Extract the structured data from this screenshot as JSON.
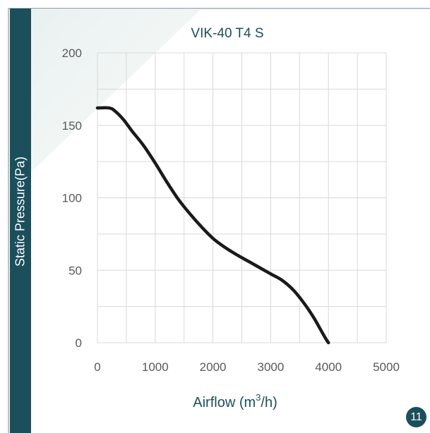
{
  "page_number": "11",
  "chart_data": {
    "type": "line",
    "title": "VIK-40 T4 S",
    "xlabel": "Airflow (m³/h)",
    "xlabel_base": "Airflow (m",
    "xlabel_sup": "3",
    "xlabel_end": "/h)",
    "ylabel": "Static Pressure(Pa)",
    "xlim": [
      0,
      5000
    ],
    "ylim": [
      0,
      200
    ],
    "x_ticks": [
      0,
      1000,
      2000,
      3000,
      4000,
      5000
    ],
    "y_ticks": [
      0,
      50,
      100,
      150,
      200
    ],
    "grid": true,
    "series": [
      {
        "color": "#1a1a1a",
        "x": [
          0,
          200,
          300,
          450,
          600,
          800,
          1000,
          1200,
          1400,
          1600,
          1800,
          2000,
          2200,
          2400,
          2600,
          2800,
          3000,
          3200,
          3400,
          3600,
          3750,
          3850,
          3950,
          4000
        ],
        "y": [
          162,
          162,
          160,
          154,
          146,
          136,
          124,
          111,
          99,
          89,
          80,
          72,
          66,
          61,
          56.5,
          52,
          47.5,
          43,
          36,
          26,
          17,
          10,
          3,
          0
        ]
      }
    ]
  }
}
